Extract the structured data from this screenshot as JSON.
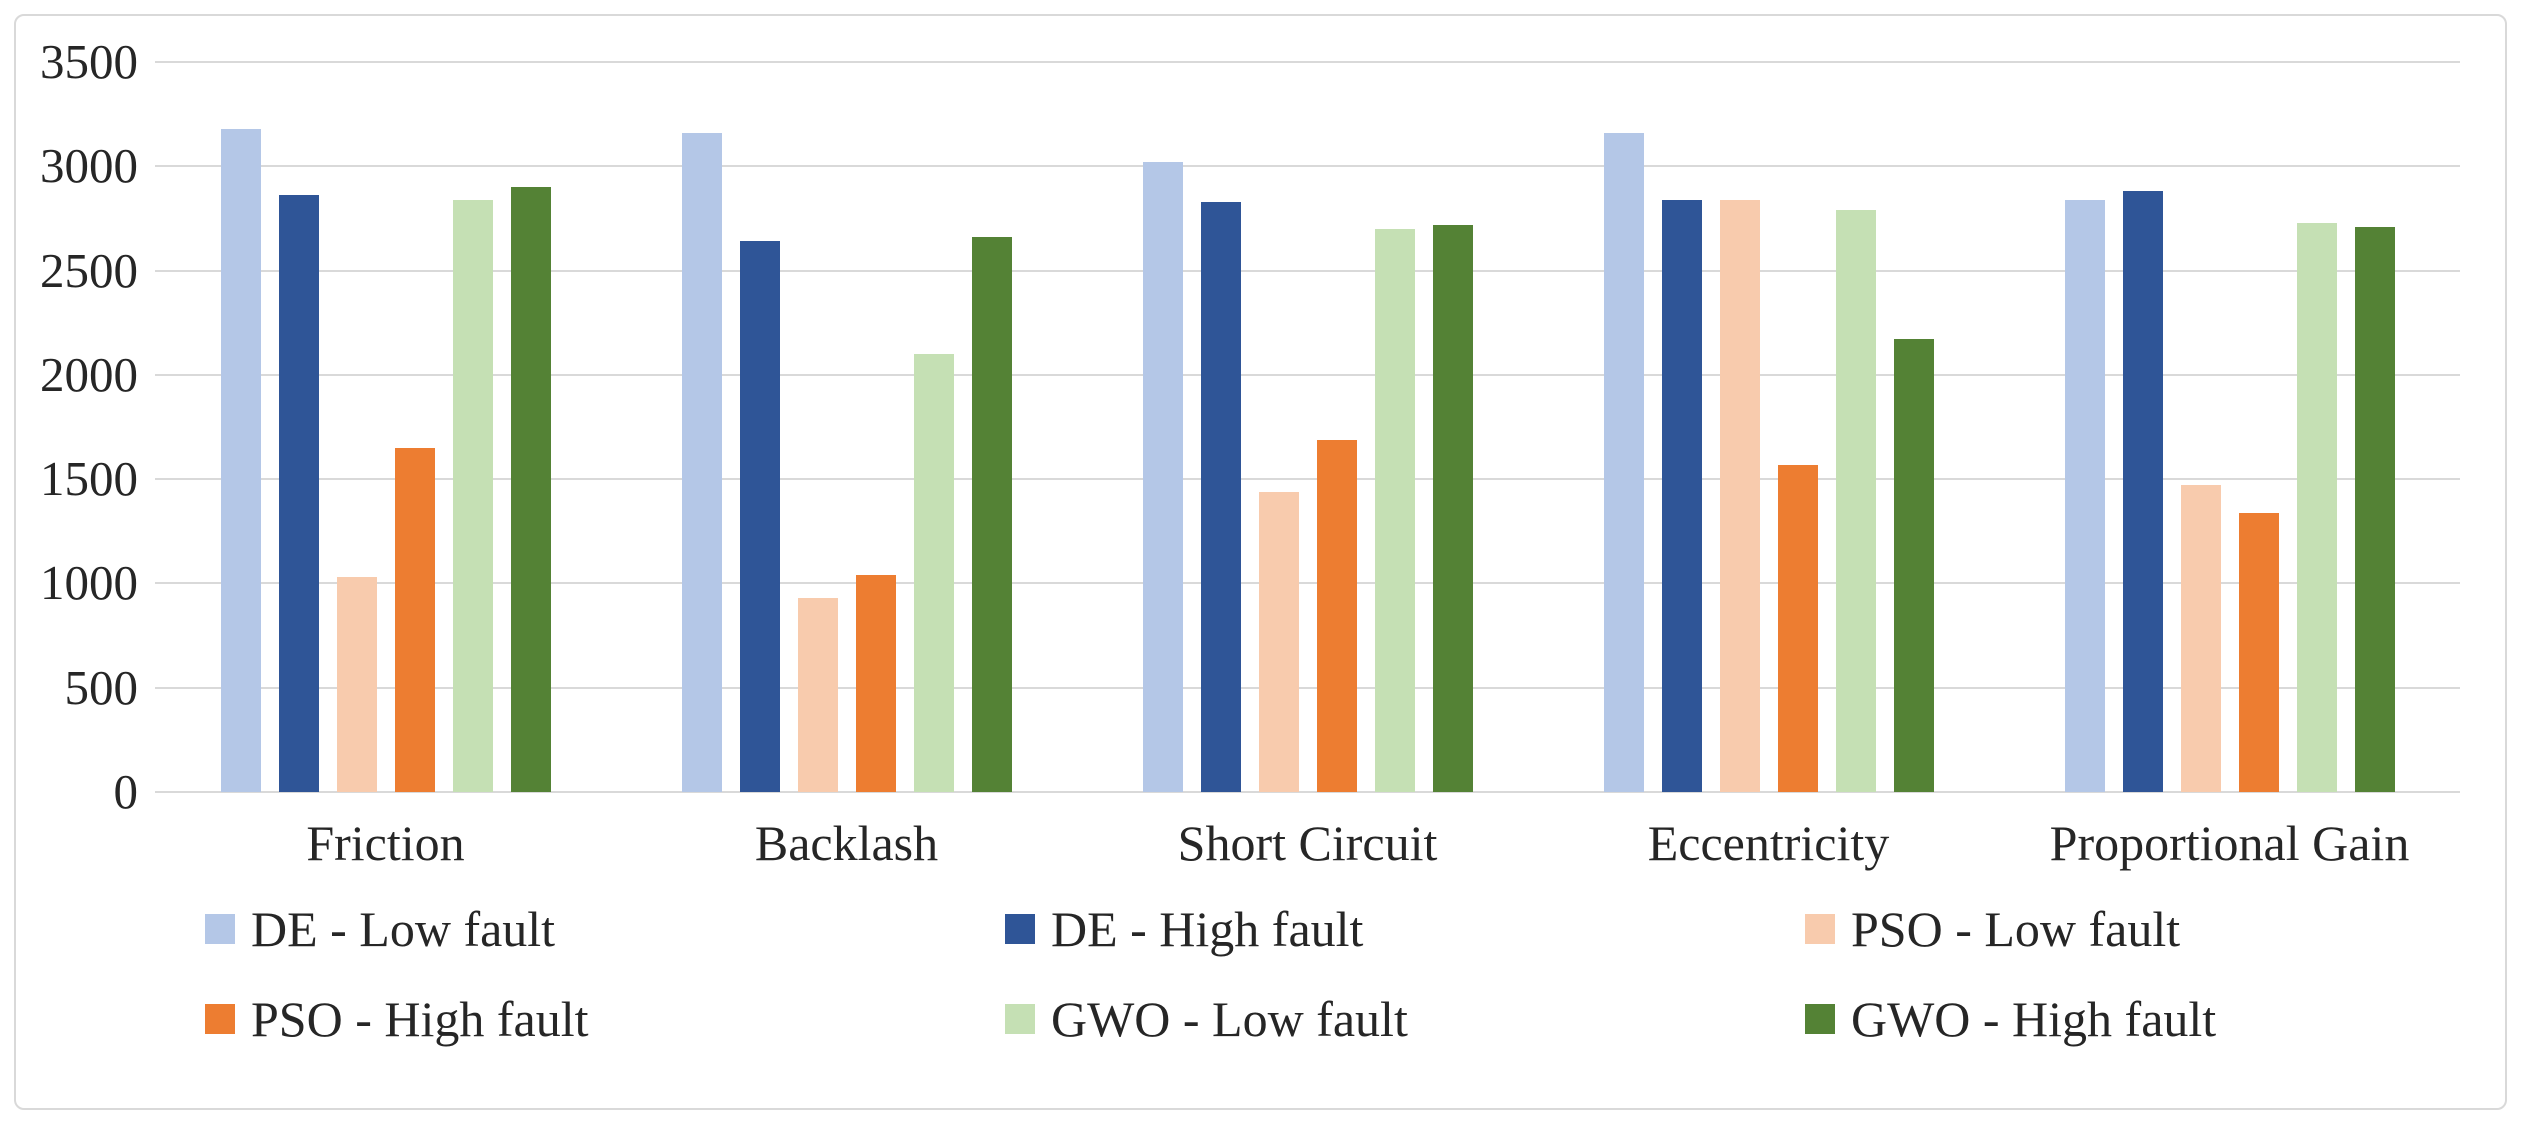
{
  "chart_data": {
    "type": "bar",
    "title": "",
    "xlabel": "",
    "ylabel": "",
    "categories": [
      "Friction",
      "Backlash",
      "Short Circuit",
      "Eccentricity",
      "Proportional Gain"
    ],
    "series": [
      {
        "name": "DE - Low fault",
        "color": "#b4c7e7",
        "values": [
          3180,
          3160,
          3020,
          3160,
          2840
        ]
      },
      {
        "name": "DE - High fault",
        "color": "#2f5597",
        "values": [
          2860,
          2640,
          2830,
          2840,
          2880
        ]
      },
      {
        "name": "PSO - Low fault",
        "color": "#f8cbad",
        "values": [
          1030,
          930,
          1440,
          2840,
          1470
        ]
      },
      {
        "name": "PSO - High fault",
        "color": "#ed7d31",
        "values": [
          1650,
          1040,
          1690,
          1570,
          1340
        ]
      },
      {
        "name": "GWO - Low fault",
        "color": "#c5e0b4",
        "values": [
          2840,
          2100,
          2700,
          2790,
          2730
        ]
      },
      {
        "name": "GWO - High fault",
        "color": "#548235",
        "values": [
          2900,
          2660,
          2720,
          2170,
          2710
        ]
      }
    ],
    "ylim": [
      0,
      3500
    ],
    "ytick_step": 500,
    "yticks": [
      "3500",
      "3000",
      "2500",
      "2000",
      "1500",
      "1000",
      "500",
      "0"
    ],
    "grid": true,
    "legend_position": "bottom",
    "gridline_color": "#d9d9d9",
    "text_color": "#262626",
    "background_color": "#ffffff"
  }
}
